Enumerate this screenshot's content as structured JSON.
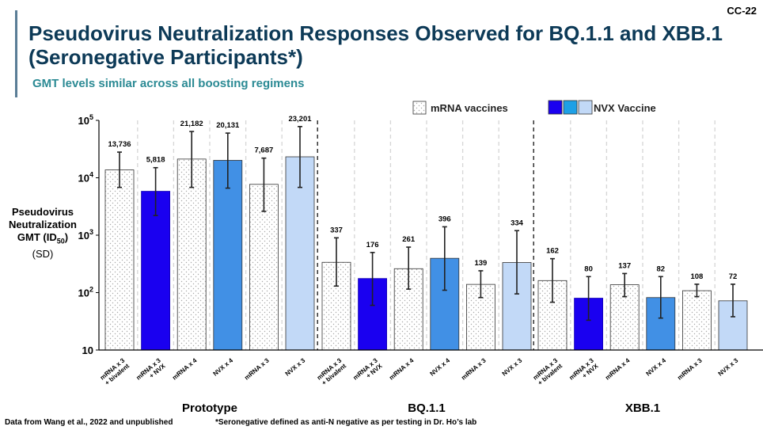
{
  "slide_id": "CC-22",
  "title": "Pseudovirus Neutralization Responses Observed for BQ.1.1 and XBB.1 (Seronegative Participants*)",
  "subtitle": "GMT levels similar across all boosting regimens",
  "y_axis_label": {
    "line1": "Pseudovirus",
    "line2": "Neutralization",
    "line3_prefix": "GMT (ID",
    "line3_sub": "50",
    "line3_suffix": ")",
    "line4": "(SD)"
  },
  "footer": {
    "source": "Data from Wang et al., 2022 and unpublished",
    "note": "*Seronegative defined as anti-N negative as per testing in Dr. Ho’s lab"
  },
  "legend": {
    "mrna_label": "mRNA vaccines",
    "nvx_label": "NVX Vaccine",
    "nvx_swatch_colors": [
      "#1a00f0",
      "#1ea0e6",
      "#c2d9f7"
    ]
  },
  "colors": {
    "mrna_fill": "#ffffff",
    "mrna_dots": "#a8a8a8",
    "nvx_dark": "#1a00f0",
    "nvx_mid": "#4190e5",
    "nvx_light": "#c2d9f7",
    "title_color": "#0d3a57",
    "subtitle_color": "#2b8a94"
  },
  "chart_data": {
    "type": "bar",
    "y_scale": "log",
    "ylim": [
      10,
      100000
    ],
    "y_ticks": [
      {
        "value": 10,
        "base": "10",
        "exp": ""
      },
      {
        "value": 100,
        "base": "10",
        "exp": "2"
      },
      {
        "value": 1000,
        "base": "10",
        "exp": "3"
      },
      {
        "value": 10000,
        "base": "10",
        "exp": "4"
      },
      {
        "value": 100000,
        "base": "10",
        "exp": "5"
      }
    ],
    "groups": [
      {
        "name": "Prototype",
        "bars": [
          {
            "label": "mRNA x 3 + bivalent",
            "value": 13736,
            "value_label": "13,736",
            "err_low": 6800,
            "err_high": 28000,
            "style": "mrna"
          },
          {
            "label": "mRNA x 3 + NVX",
            "value": 5818,
            "value_label": "5,818",
            "err_low": 2200,
            "err_high": 15000,
            "style": "nvx_dark"
          },
          {
            "label": "mRNA x 4",
            "value": 21182,
            "value_label": "21,182",
            "err_low": 6800,
            "err_high": 64000,
            "style": "mrna"
          },
          {
            "label": "NVX x 4",
            "value": 20131,
            "value_label": "20,131",
            "err_low": 6600,
            "err_high": 60000,
            "style": "nvx_mid"
          },
          {
            "label": "mRNA x 3",
            "value": 7687,
            "value_label": "7,687",
            "err_low": 2600,
            "err_high": 22000,
            "style": "mrna"
          },
          {
            "label": "NVX x 3",
            "value": 23201,
            "value_label": "23,201",
            "err_low": 6800,
            "err_high": 78000,
            "style": "nvx_light"
          }
        ]
      },
      {
        "name": "BQ.1.1",
        "bars": [
          {
            "label": "mRNA x 3 + bivalent",
            "value": 337,
            "value_label": "337",
            "err_low": 130,
            "err_high": 900,
            "style": "mrna"
          },
          {
            "label": "mRNA x 3 + NVX",
            "value": 176,
            "value_label": "176",
            "err_low": 60,
            "err_high": 500,
            "style": "nvx_dark"
          },
          {
            "label": "mRNA x 4",
            "value": 261,
            "value_label": "261",
            "err_low": 115,
            "err_high": 620,
            "style": "mrna"
          },
          {
            "label": "NVX x 4",
            "value": 396,
            "value_label": "396",
            "err_low": 110,
            "err_high": 1400,
            "style": "nvx_mid"
          },
          {
            "label": "mRNA x 3",
            "value": 139,
            "value_label": "139",
            "err_low": 82,
            "err_high": 240,
            "style": "mrna"
          },
          {
            "label": "NVX x 3",
            "value": 334,
            "value_label": "334",
            "err_low": 95,
            "err_high": 1200,
            "style": "nvx_light"
          }
        ]
      },
      {
        "name": "XBB.1",
        "bars": [
          {
            "label": "mRNA x 3 + bivalent",
            "value": 162,
            "value_label": "162",
            "err_low": 68,
            "err_high": 390,
            "style": "mrna"
          },
          {
            "label": "mRNA x 3 + NVX",
            "value": 80,
            "value_label": "80",
            "err_low": 33,
            "err_high": 190,
            "style": "nvx_dark"
          },
          {
            "label": "mRNA x 4",
            "value": 137,
            "value_label": "137",
            "err_low": 85,
            "err_high": 215,
            "style": "mrna"
          },
          {
            "label": "NVX x 4",
            "value": 82,
            "value_label": "82",
            "err_low": 36,
            "err_high": 190,
            "style": "nvx_mid"
          },
          {
            "label": "mRNA x 3",
            "value": 108,
            "value_label": "108",
            "err_low": 85,
            "err_high": 140,
            "style": "mrna"
          },
          {
            "label": "NVX x 3",
            "value": 72,
            "value_label": "72",
            "err_low": 38,
            "err_high": 140,
            "style": "nvx_light"
          }
        ]
      }
    ]
  }
}
